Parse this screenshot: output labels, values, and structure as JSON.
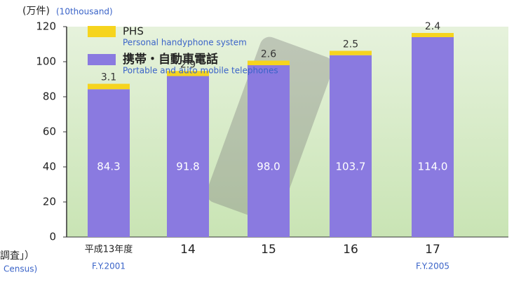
{
  "chart_data": {
    "type": "stacked_bar",
    "y_label": "(万件)",
    "y_label_en": "(10thousand)",
    "categories": [
      "平成13年度",
      "14",
      "15",
      "16",
      "17"
    ],
    "sublabels": [
      "F.Y.2001",
      null,
      null,
      null,
      "F.Y.2005"
    ],
    "series": [
      {
        "name": "携帯・自動車電話",
        "name_en": "Portable and auto mobile telephones",
        "color": "#8a7ae0",
        "values": [
          84.3,
          91.8,
          98.0,
          103.7,
          114.0
        ],
        "value_labels": [
          "84.3",
          "91.8",
          "98.0",
          "103.7",
          "114.0"
        ]
      },
      {
        "name": "PHS",
        "name_en": "Personal handyphone system",
        "color": "#f6d41e",
        "values": [
          3.1,
          2.9,
          2.6,
          2.5,
          2.4
        ]
      }
    ],
    "ylim": [
      0,
      120
    ],
    "yticks": [
      0,
      20,
      40,
      60,
      80,
      100,
      120
    ],
    "footnote": [
      "調査」）",
      "Census)"
    ]
  }
}
